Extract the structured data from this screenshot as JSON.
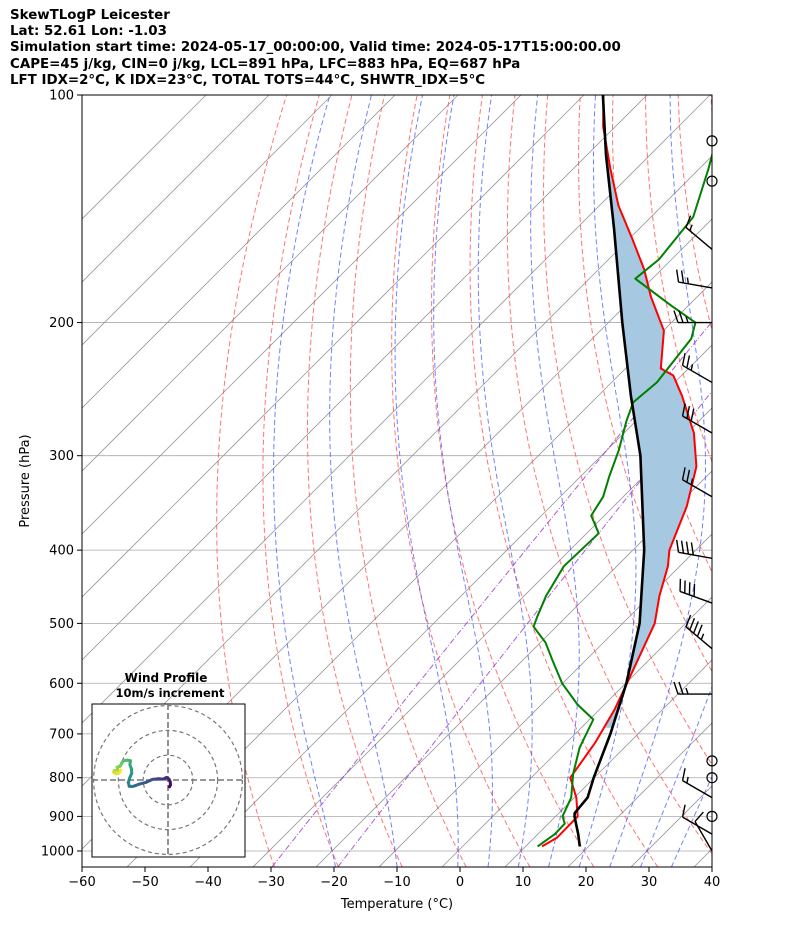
{
  "header": {
    "line1": "SkewTLogP Leicester",
    "line2": "Lat: 52.61   Lon: -1.03",
    "line3": "Simulation start time: 2024-05-17_00:00:00, Valid time: 2024-05-17T15:00:00.00",
    "line4": "CAPE=45 j/kg, CIN=0 j/kg, LCL=891 hPa, LFC=883 hPa, EQ=687 hPa",
    "line5": "LFT IDX=2°C, K IDX=23°C, TOTAL TOTS=44°C, SHWTR_IDX=5°C"
  },
  "colors": {
    "temperature": "#ff0000",
    "dewpoint": "#008000",
    "parcel": "#000000",
    "cape_fill": "#a6c8e0",
    "dry_adiabat": "#ff4444",
    "moist_adiabat": "#4455ff",
    "mixing_ratio": "#9933cc",
    "isotherm": "#999999",
    "isobar": "#aaaaaa"
  },
  "chart_data": {
    "type": "line",
    "title": "SkewTLogP Leicester",
    "xlabel": "Temperature (°C)",
    "ylabel": "Pressure (hPa)",
    "xlim": [
      -60,
      40
    ],
    "ylim": [
      1050,
      100
    ],
    "yscale": "log",
    "xticks": [
      -60,
      -50,
      -40,
      -30,
      -20,
      -10,
      0,
      10,
      20,
      30,
      40
    ],
    "yticks": [
      1000,
      900,
      800,
      700,
      600,
      500,
      400,
      300,
      200,
      100
    ],
    "grid": true,
    "series": [
      {
        "key": "temperature",
        "points": [
          [
            986,
            12.6
          ],
          [
            960,
            13.6
          ],
          [
            900,
            13.5
          ],
          [
            850,
            10.3
          ],
          [
            800,
            6.2
          ],
          [
            720,
            4.6
          ],
          [
            650,
            2.4
          ],
          [
            600,
            0.2
          ],
          [
            500,
            -4.9
          ],
          [
            460,
            -8.5
          ],
          [
            420,
            -11.9
          ],
          [
            400,
            -14.2
          ],
          [
            350,
            -18.4
          ],
          [
            310,
            -23.2
          ],
          [
            280,
            -28.9
          ],
          [
            250,
            -36.7
          ],
          [
            235,
            -41.3
          ],
          [
            230,
            -44.4
          ],
          [
            205,
            -49.9
          ],
          [
            185,
            -57.3
          ],
          [
            170,
            -62.8
          ],
          [
            155,
            -69.5
          ],
          [
            140,
            -77
          ],
          [
            125,
            -84.2
          ],
          [
            110,
            -92
          ],
          [
            100,
            -96.9
          ]
        ]
      },
      {
        "key": "dewpoint",
        "points": [
          [
            986,
            11.9
          ],
          [
            950,
            12.7
          ],
          [
            920,
            12.6
          ],
          [
            900,
            11.1
          ],
          [
            850,
            9.5
          ],
          [
            790,
            6
          ],
          [
            730,
            2.9
          ],
          [
            670,
            0.6
          ],
          [
            640,
            -4.3
          ],
          [
            600,
            -10.1
          ],
          [
            560,
            -15.2
          ],
          [
            530,
            -19.2
          ],
          [
            505,
            -23.6
          ],
          [
            490,
            -24.6
          ],
          [
            460,
            -26.5
          ],
          [
            420,
            -28.4
          ],
          [
            380,
            -28.1
          ],
          [
            360,
            -32.1
          ],
          [
            340,
            -33.2
          ],
          [
            320,
            -35.4
          ],
          [
            295,
            -38.1
          ],
          [
            270,
            -41.5
          ],
          [
            255,
            -43.4
          ],
          [
            240,
            -42.8
          ],
          [
            210,
            -44.3
          ],
          [
            200,
            -46.2
          ],
          [
            190,
            -52.7
          ],
          [
            175,
            -62.7
          ],
          [
            165,
            -62
          ],
          [
            145,
            -63.3
          ],
          [
            125,
            -68.6
          ],
          [
            110,
            -73.5
          ],
          [
            100,
            -75
          ]
        ]
      },
      {
        "key": "parcel",
        "points": [
          [
            986,
            18.6
          ],
          [
            950,
            16.4
          ],
          [
            900,
            13
          ],
          [
            891,
            12.5
          ],
          [
            850,
            12.1
          ],
          [
            800,
            9.9
          ],
          [
            700,
            5.6
          ],
          [
            600,
            0.1
          ],
          [
            500,
            -7.3
          ],
          [
            400,
            -18.2
          ],
          [
            300,
            -33.8
          ],
          [
            250,
            -44.8
          ],
          [
            200,
            -57.8
          ],
          [
            150,
            -74.1
          ],
          [
            120,
            -87
          ],
          [
            100,
            -97
          ]
        ]
      }
    ],
    "cape_region": {
      "pressure_range": [
        100,
        687
      ]
    },
    "dry_adiabats_theta_c": [
      -30,
      -20,
      -10,
      0,
      10,
      20,
      30,
      40,
      50,
      60,
      70,
      80,
      90,
      100,
      110,
      120,
      130,
      140,
      150,
      160,
      170,
      180,
      190,
      200
    ],
    "moist_adiabats_tw_c": [
      -20,
      -10,
      0,
      5,
      10,
      15,
      20,
      25,
      30,
      35
    ],
    "mixing_ratio_lines_gkg": [
      0.4,
      1
    ],
    "wind_barbs": [
      {
        "p": 1000,
        "dir": 330,
        "kt": 10
      },
      {
        "p": 950,
        "dir": 300,
        "kt": 12
      },
      {
        "p": 900,
        "dir": 0,
        "kt": 0
      },
      {
        "p": 800,
        "dir": 0,
        "kt": 0
      },
      {
        "p": 850,
        "dir": 300,
        "kt": 15
      },
      {
        "p": 760,
        "dir": 0,
        "kt": 0
      },
      {
        "p": 620,
        "dir": 270,
        "kt": 25
      },
      {
        "p": 540,
        "dir": 310,
        "kt": 45
      },
      {
        "p": 470,
        "dir": 290,
        "kt": 40
      },
      {
        "p": 410,
        "dir": 280,
        "kt": 40
      },
      {
        "p": 340,
        "dir": 300,
        "kt": 25
      },
      {
        "p": 280,
        "dir": 300,
        "kt": 30
      },
      {
        "p": 240,
        "dir": 300,
        "kt": 25
      },
      {
        "p": 200,
        "dir": 270,
        "kt": 25
      },
      {
        "p": 180,
        "dir": 280,
        "kt": 25
      },
      {
        "p": 160,
        "dir": 310,
        "kt": 15
      },
      {
        "p": 130,
        "dir": 0,
        "kt": 0
      },
      {
        "p": 115,
        "dir": 0,
        "kt": 0
      }
    ],
    "hodograph": {
      "title": "Wind Profile",
      "subtitle": "10m/s increment",
      "ring_step_ms": 10,
      "uv": [
        [
          0.5,
          -2.2
        ],
        [
          0.8,
          -1.5
        ],
        [
          0.7,
          -0.5
        ],
        [
          0.3,
          0.3
        ],
        [
          -0.5,
          0.8
        ],
        [
          -1.6,
          0.3
        ],
        [
          -3,
          0.4
        ],
        [
          -5,
          0.2
        ],
        [
          -7.2,
          -0.8
        ],
        [
          -9.2,
          -1.3
        ],
        [
          -10.5,
          -1.8
        ],
        [
          -11.5,
          -2.1
        ],
        [
          -12.5,
          -2
        ],
        [
          -12.8,
          -0.8
        ],
        [
          -12.3,
          0.8
        ],
        [
          -11.7,
          2.2
        ],
        [
          -11.8,
          3.6
        ],
        [
          -12.3,
          5
        ],
        [
          -12.1,
          6.2
        ],
        [
          -13.1,
          6.4
        ],
        [
          -14.4,
          6.2
        ],
        [
          -14.9,
          5.5
        ],
        [
          -15.3,
          4.6
        ],
        [
          -16.4,
          4.1
        ],
        [
          -16.2,
          3.2
        ],
        [
          -17.4,
          3
        ],
        [
          -17.5,
          2.5
        ],
        [
          -16.8,
          2
        ],
        [
          -15.6,
          2.4
        ],
        [
          -15.2,
          3.2
        ]
      ]
    }
  }
}
